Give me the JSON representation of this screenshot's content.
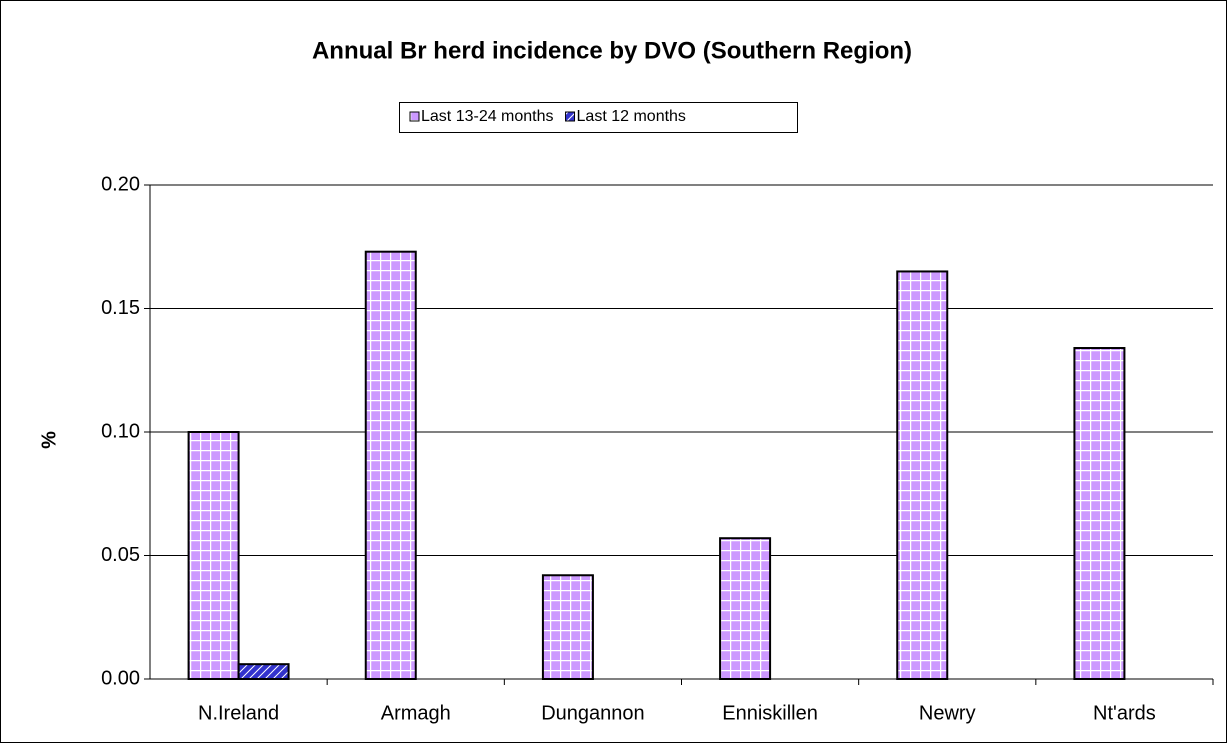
{
  "chart_data": {
    "type": "bar",
    "title": "Annual Br herd incidence by DVO (Southern Region)",
    "y_label": "%",
    "categories": [
      "N.Ireland",
      "Armagh",
      "Dungannon",
      "Enniskillen",
      "Newry",
      "Nt'ards"
    ],
    "series": [
      {
        "name": "Last 13-24 months",
        "color": "#cc99ff",
        "values": [
          0.1,
          0.173,
          0.042,
          0.057,
          0.165,
          0.134
        ]
      },
      {
        "name": "Last 12 months",
        "color": "#3333cc",
        "values": [
          0.006,
          0,
          0,
          0,
          0,
          0
        ]
      }
    ],
    "ylim": [
      0,
      0.2
    ],
    "yticks": [
      {
        "value": 0,
        "label": "0.00"
      },
      {
        "value": 0.05,
        "label": "0.05"
      },
      {
        "value": 0.1,
        "label": "0.10"
      },
      {
        "value": 0.15,
        "label": "0.15"
      },
      {
        "value": 0.2,
        "label": "0.20"
      }
    ],
    "grid": true
  }
}
